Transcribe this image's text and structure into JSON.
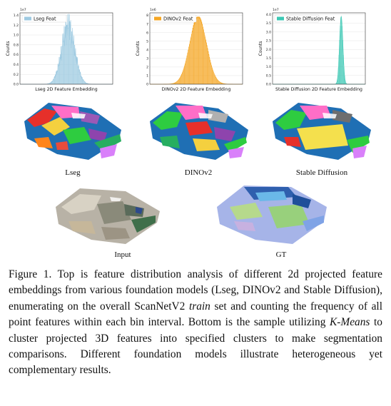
{
  "chart_data": [
    {
      "type": "bar",
      "legend": "Lseg Feat",
      "xlabel": "Lseg 2D Feature Embedding",
      "ylabel": "Counts",
      "exponent": "1e7",
      "yticks": [
        "0.0",
        "0.2",
        "0.4",
        "0.6",
        "0.8",
        "1.0",
        "1.2",
        "1.4"
      ],
      "ylim": [
        0,
        1.45
      ],
      "color": "#9ecae1",
      "peak": 1.43,
      "center": 0.52,
      "spread": 0.07,
      "shape": "jagged",
      "grid": true,
      "legend_position": "top-left"
    },
    {
      "type": "bar",
      "legend": "DINOv2 Feat",
      "xlabel": "DINOv2 2D Feature Embedding",
      "ylabel": "Counts",
      "exponent": "1e6",
      "yticks": [
        "0",
        "1",
        "2",
        "3",
        "4",
        "5",
        "6",
        "7",
        "8"
      ],
      "ylim": [
        0,
        8.3
      ],
      "color": "#f5a623",
      "peak": 7.8,
      "center": 0.52,
      "spread": 0.09,
      "shape": "smooth",
      "grid": true,
      "legend_position": "top-left"
    },
    {
      "type": "bar",
      "legend": "Stable Diffusion Feat",
      "xlabel": "Stable Diffusion 2D Feature Embedding",
      "ylabel": "Counts",
      "exponent": "1e7",
      "yticks": [
        "0.0",
        "0.5",
        "1.0",
        "1.5",
        "2.0",
        "2.5",
        "3.0",
        "3.5",
        "4.0"
      ],
      "ylim": [
        0,
        4.1
      ],
      "color": "#3cc8b4",
      "peak": 3.9,
      "center": 0.74,
      "spread": 0.018,
      "shape": "spike",
      "grid": true,
      "legend_position": "top-left"
    }
  ],
  "scenes": {
    "lseg_label": "Lseg",
    "dinov2_label": "DINOv2",
    "sd_label": "Stable Diffusion",
    "input_label": "Input",
    "gt_label": "GT"
  },
  "caption": {
    "part1": "Figure 1. Top is feature distribution analysis of different 2d projected feature embeddings from various foundation models (Lseg, DINOv2 and Stable Diffusion), enumerating on the overall ScanNetV2 ",
    "italic1": "train",
    "part2": " set and counting the frequency of all point features within each bin interval. Bottom is the sample utilizing ",
    "italic2": "K-Means",
    "part3": " to cluster projected 3D features into specified clusters to make segmentation comparisons. Different foundation models illustrate heterogeneous yet complementary results."
  }
}
